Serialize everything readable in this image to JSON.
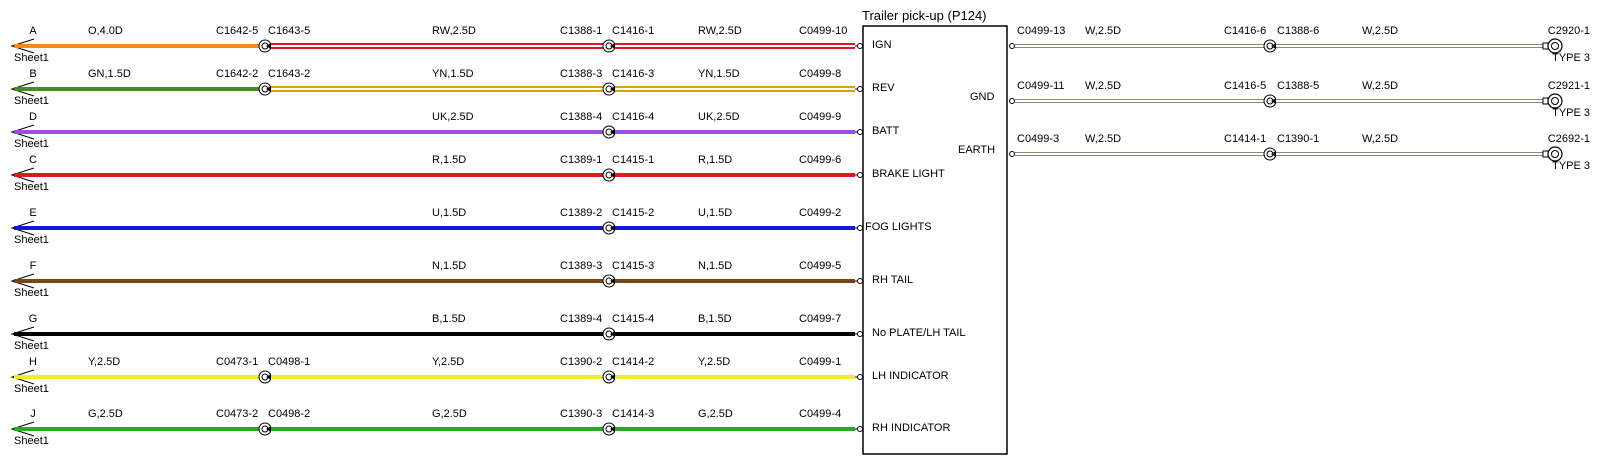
{
  "module": {
    "title": "Trailer pick-up (P124)",
    "pins_left": [
      "IGN",
      "REV",
      "BATT",
      "BRAKE LIGHT",
      "FOG LIGHTS",
      "RH TAIL",
      "No PLATE/LH TAIL",
      "LH INDICATOR",
      "RH INDICATOR"
    ],
    "pins_right": [
      "GND",
      "EARTH"
    ]
  },
  "left_circuits": [
    {
      "letter": "A",
      "sheet": "Sheet1",
      "color": "#f28a1e",
      "stripe": null,
      "seg1_label": "O,4.0D",
      "conn1_left": "C1642-5",
      "conn1_right": "C1643-5",
      "seg2_label": "RW,2.5D",
      "conn2_left": "C1388-1",
      "conn2_right": "C1416-1",
      "seg3_label": "RW,2.5D",
      "end_conn": "C0499-10"
    },
    {
      "letter": "B",
      "sheet": "Sheet1",
      "color": "#4a8a1e",
      "stripe": null,
      "seg1_label": "GN,1.5D",
      "conn1_left": "C1642-2",
      "conn1_right": "C1643-2",
      "seg2_label": "YN,1.5D",
      "conn2_left": "C1388-3",
      "conn2_right": "C1416-3",
      "seg3_label": "YN,1.5D",
      "end_conn": "C0499-8"
    },
    {
      "letter": "D",
      "sheet": "Sheet1",
      "color": "#9b4fe0",
      "stripe": null,
      "seg1_label": "",
      "conn1_left": "",
      "conn1_right": "",
      "seg2_label": "UK,2.5D",
      "conn2_left": "C1388-4",
      "conn2_right": "C1416-4",
      "seg3_label": "UK,2.5D",
      "end_conn": "C0499-9"
    },
    {
      "letter": "C",
      "sheet": "Sheet1",
      "color": "#e01818",
      "stripe": null,
      "seg1_label": "",
      "conn1_left": "",
      "conn1_right": "",
      "seg2_label": "R,1.5D",
      "conn2_left": "C1389-1",
      "conn2_right": "C1415-1",
      "seg3_label": "R,1.5D",
      "end_conn": "C0499-6"
    },
    {
      "letter": "E",
      "sheet": "Sheet1",
      "color": "#1515d8",
      "stripe": null,
      "seg1_label": "",
      "conn1_left": "",
      "conn1_right": "",
      "seg2_label": "U,1.5D",
      "conn2_left": "C1389-2",
      "conn2_right": "C1415-2",
      "seg3_label": "U,1.5D",
      "end_conn": "C0499-2"
    },
    {
      "letter": "F",
      "sheet": "Sheet1",
      "color": "#7a4414",
      "stripe": null,
      "seg1_label": "",
      "conn1_left": "",
      "conn1_right": "",
      "seg2_label": "N,1.5D",
      "conn2_left": "C1389-3",
      "conn2_right": "C1415-3",
      "seg3_label": "N,1.5D",
      "end_conn": "C0499-5"
    },
    {
      "letter": "G",
      "sheet": "Sheet1",
      "color": "#000000",
      "stripe": null,
      "seg1_label": "",
      "conn1_left": "",
      "conn1_right": "",
      "seg2_label": "B,1.5D",
      "conn2_left": "C1389-4",
      "conn2_right": "C1415-4",
      "seg3_label": "B,1.5D",
      "end_conn": "C0499-7"
    },
    {
      "letter": "H",
      "sheet": "Sheet1",
      "color": "#f0ea30",
      "stripe": null,
      "seg1_label": "Y,2.5D",
      "conn1_left": "C0473-1",
      "conn1_right": "C0498-1",
      "seg2_label": "Y,2.5D",
      "conn2_left": "C1390-2",
      "conn2_right": "C1414-2",
      "seg3_label": "Y,2.5D",
      "end_conn": "C0499-1"
    },
    {
      "letter": "J",
      "sheet": "Sheet1",
      "color": "#2aa82a",
      "stripe": null,
      "seg1_label": "G,2.5D",
      "conn1_left": "C0473-2",
      "conn1_right": "C0498-2",
      "seg2_label": "G,2.5D",
      "conn2_left": "C1390-3",
      "conn2_right": "C1414-3",
      "seg3_label": "G,2.5D",
      "end_conn": "C0499-4"
    }
  ],
  "right_circuits": [
    {
      "start_conn": "C0499-13",
      "seg1_label": "W,2.5D",
      "conn_left": "C1416-6",
      "conn_right": "C1388-6",
      "seg2_label": "W,2.5D",
      "end_conn": "C2920-1",
      "end_type": "TYPE 3"
    },
    {
      "start_conn": "C0499-11",
      "seg1_label": "W,2.5D",
      "conn_left": "C1416-5",
      "conn_right": "C1388-5",
      "seg2_label": "W,2.5D",
      "end_conn": "C2921-1",
      "end_type": "TYPE 3"
    },
    {
      "start_conn": "C0499-3",
      "seg1_label": "W,2.5D",
      "conn_left": "C1414-1",
      "conn_right": "C1390-1",
      "seg2_label": "W,2.5D",
      "end_conn": "C2692-1",
      "end_type": "TYPE 3"
    }
  ],
  "colors": {
    "red_stripe": "#e01818",
    "ryn_stripe": "#d9a400",
    "white_wire_edge": "#8a8a6a",
    "white_wire_fill": "#ffffff"
  }
}
